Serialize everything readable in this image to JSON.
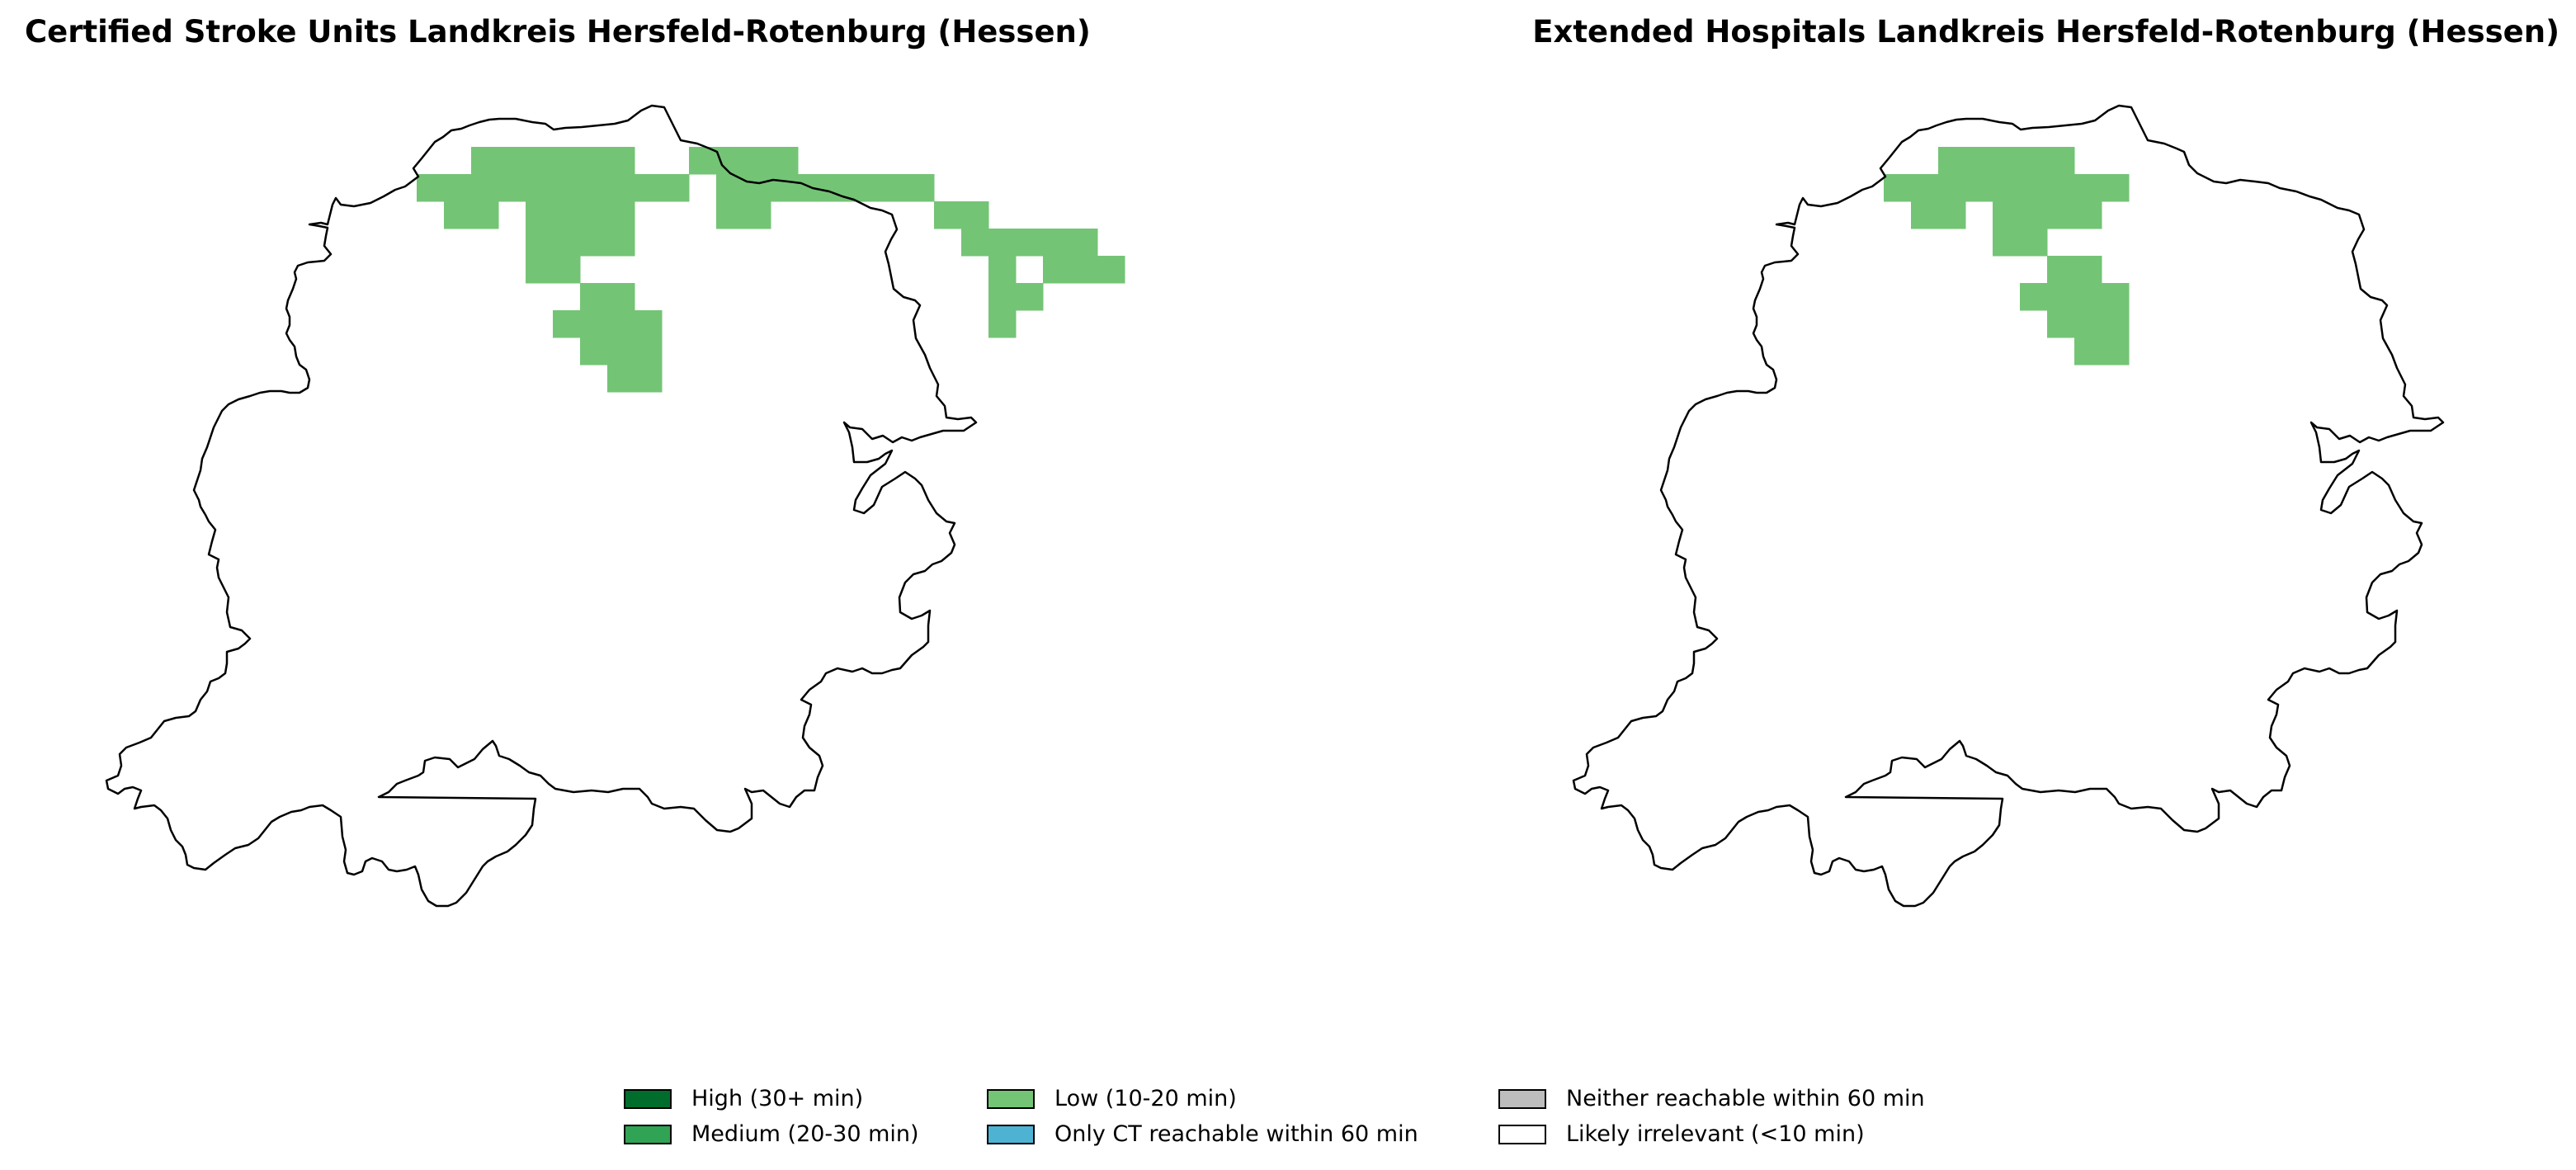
{
  "panels": [
    {
      "title": "Certified Stroke Units Landkreis Hersfeld-Rotenburg (Hessen)",
      "low_cells": [
        [
          5,
          1
        ],
        [
          6,
          1
        ],
        [
          7,
          1
        ],
        [
          8,
          1
        ],
        [
          9,
          1
        ],
        [
          10,
          1
        ],
        [
          13,
          1
        ],
        [
          14,
          1
        ],
        [
          15,
          1
        ],
        [
          16,
          1
        ],
        [
          3,
          2
        ],
        [
          4,
          2
        ],
        [
          5,
          2
        ],
        [
          6,
          2
        ],
        [
          7,
          2
        ],
        [
          8,
          2
        ],
        [
          9,
          2
        ],
        [
          10,
          2
        ],
        [
          11,
          2
        ],
        [
          12,
          2
        ],
        [
          14,
          2
        ],
        [
          15,
          2
        ],
        [
          16,
          2
        ],
        [
          17,
          2
        ],
        [
          18,
          2
        ],
        [
          19,
          2
        ],
        [
          20,
          2
        ],
        [
          21,
          2
        ],
        [
          4,
          3
        ],
        [
          5,
          3
        ],
        [
          7,
          3
        ],
        [
          8,
          3
        ],
        [
          9,
          3
        ],
        [
          10,
          3
        ],
        [
          14,
          3
        ],
        [
          15,
          3
        ],
        [
          22,
          3
        ],
        [
          23,
          3
        ],
        [
          7,
          4
        ],
        [
          8,
          4
        ],
        [
          9,
          4
        ],
        [
          10,
          4
        ],
        [
          23,
          4
        ],
        [
          24,
          4
        ],
        [
          25,
          4
        ],
        [
          26,
          4
        ],
        [
          27,
          4
        ],
        [
          7,
          5
        ],
        [
          8,
          5
        ],
        [
          24,
          5
        ],
        [
          26,
          5
        ],
        [
          27,
          5
        ],
        [
          28,
          5
        ],
        [
          9,
          6
        ],
        [
          10,
          6
        ],
        [
          24,
          6
        ],
        [
          25,
          6
        ],
        [
          8,
          7
        ],
        [
          9,
          7
        ],
        [
          10,
          7
        ],
        [
          11,
          7
        ],
        [
          24,
          7
        ],
        [
          9,
          8
        ],
        [
          10,
          8
        ],
        [
          11,
          8
        ],
        [
          10,
          9
        ],
        [
          11,
          9
        ]
      ]
    },
    {
      "title": "Extended Hospitals Landkreis Hersfeld-Rotenburg (Hessen)",
      "low_cells": [
        [
          5,
          1
        ],
        [
          6,
          1
        ],
        [
          7,
          1
        ],
        [
          8,
          1
        ],
        [
          9,
          1
        ],
        [
          3,
          2
        ],
        [
          4,
          2
        ],
        [
          5,
          2
        ],
        [
          6,
          2
        ],
        [
          7,
          2
        ],
        [
          8,
          2
        ],
        [
          9,
          2
        ],
        [
          10,
          2
        ],
        [
          11,
          2
        ],
        [
          4,
          3
        ],
        [
          5,
          3
        ],
        [
          7,
          3
        ],
        [
          8,
          3
        ],
        [
          9,
          3
        ],
        [
          10,
          3
        ],
        [
          7,
          4
        ],
        [
          8,
          4
        ],
        [
          9,
          5
        ],
        [
          10,
          5
        ],
        [
          8,
          6
        ],
        [
          9,
          6
        ],
        [
          10,
          6
        ],
        [
          11,
          6
        ],
        [
          9,
          7
        ],
        [
          10,
          7
        ],
        [
          11,
          7
        ],
        [
          10,
          8
        ],
        [
          11,
          8
        ]
      ]
    }
  ],
  "colors": {
    "high": "#006d2c",
    "medium": "#31a354",
    "low": "#74c476",
    "ct_only": "#4eb3d3",
    "neither": "#bdbdbd",
    "irrelevant": "#ffffff",
    "outline": "#000000"
  },
  "legend": [
    {
      "label": "High (30+ min)",
      "color": "#006d2c"
    },
    {
      "label": "Medium (20-30 min)",
      "color": "#31a354"
    },
    {
      "label": "Low (10-20 min)",
      "color": "#74c476"
    },
    {
      "label": "Only CT reachable within 60 min",
      "color": "#4eb3d3"
    },
    {
      "label": "Neither reachable within 60 min",
      "color": "#bdbdbd"
    },
    {
      "label": "Likely irrelevant (<10 min)",
      "color": "#ffffff"
    }
  ]
}
